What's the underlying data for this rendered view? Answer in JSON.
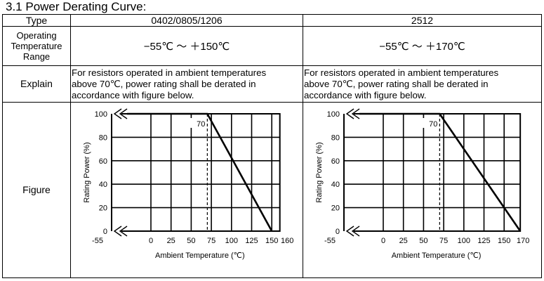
{
  "heading": "3.1 Power Derating Curve:",
  "table": {
    "header": {
      "label": "Type",
      "col1": "0402/0805/1206",
      "col2": "2512"
    },
    "temperature": {
      "label": [
        "Operating",
        "Temperature",
        "Range"
      ],
      "col1": "−55℃ ～ ＋150℃",
      "col2": "−55℃ ～ ＋170℃"
    },
    "explain": {
      "label": "Explain",
      "col1_lines": [
        "For resistors operated in ambient temperatures",
        "above 70℃, power rating shall be derated in",
        "accordance with figure below."
      ],
      "col2_lines": [
        "For resistors operated in ambient temperatures",
        "above 70℃, power rating shall be derated in",
        "accordance with figure below."
      ]
    },
    "figure": {
      "label": "Figure"
    }
  },
  "chart_data": [
    {
      "type": "line",
      "xlabel": "Ambient Temperature (℃)",
      "ylabel": "Rating Power (%)",
      "x_ticks": [
        "-55",
        "0",
        "25",
        "50",
        "75",
        "100",
        "125",
        "150",
        "160"
      ],
      "y_ticks": [
        "0",
        "20",
        "40",
        "60",
        "80",
        "100"
      ],
      "ylim": [
        0,
        100
      ],
      "marker_label": "70",
      "series": [
        {
          "x": [
            -55,
            70,
            150
          ],
          "y": [
            100,
            100,
            0
          ]
        }
      ]
    },
    {
      "type": "line",
      "xlabel": "Ambient Temperature (℃)",
      "ylabel": "Rating Power (%)",
      "x_ticks": [
        "-55",
        "0",
        "25",
        "50",
        "75",
        "100",
        "125",
        "150",
        "170"
      ],
      "y_ticks": [
        "0",
        "20",
        "40",
        "60",
        "80",
        "100"
      ],
      "ylim": [
        0,
        100
      ],
      "marker_label": "70",
      "series": [
        {
          "x": [
            -55,
            70,
            170
          ],
          "y": [
            100,
            100,
            0
          ]
        }
      ]
    }
  ]
}
